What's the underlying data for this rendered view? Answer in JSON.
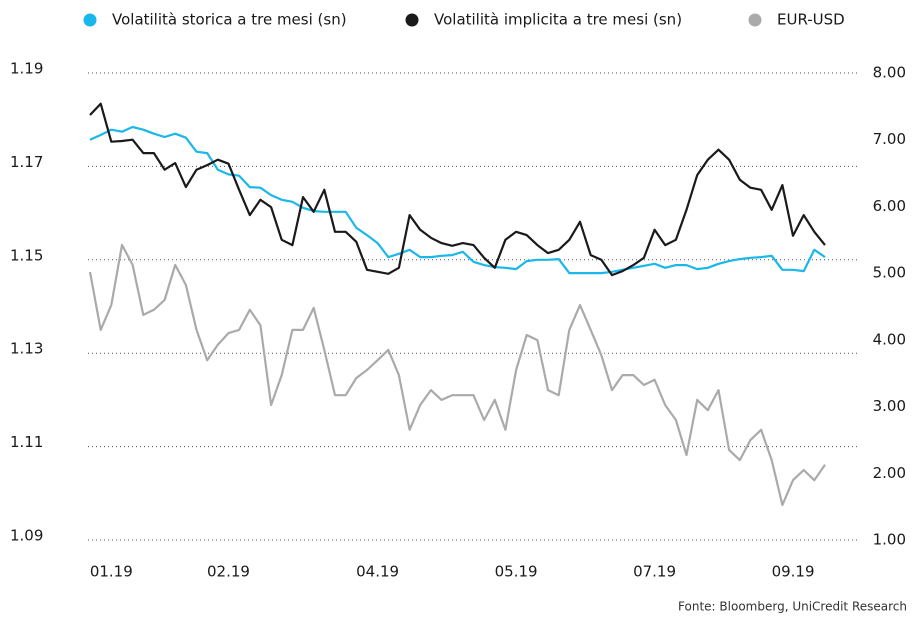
{
  "chart_data": {
    "type": "line",
    "source": "Fonte: Bloomberg, UniCredit Research",
    "categories": [
      null,
      null,
      "01.19",
      null,
      null,
      null,
      null,
      null,
      null,
      null,
      null,
      null,
      null,
      "02.19",
      null,
      null,
      null,
      null,
      null,
      null,
      null,
      null,
      null,
      null,
      null,
      null,
      null,
      "04.19",
      null,
      null,
      null,
      null,
      null,
      null,
      null,
      null,
      null,
      null,
      null,
      null,
      "05.19",
      null,
      null,
      null,
      null,
      null,
      null,
      null,
      null,
      null,
      null,
      null,
      null,
      "07.19",
      null,
      null,
      null,
      null,
      null,
      null,
      null,
      null,
      null,
      null,
      null,
      null,
      "09.19",
      null,
      null,
      null
    ],
    "ylim": [
      1.09,
      1.19
    ],
    "yticks": [
      1.09,
      1.11,
      1.13,
      1.15,
      1.17,
      1.19
    ],
    "y2lim": [
      1.0,
      8.0
    ],
    "y2ticks": [
      {
        "value": 1,
        "label": "1.00"
      },
      {
        "value": 2,
        "label": "2.00"
      },
      {
        "value": 3,
        "label": "3.00"
      },
      {
        "value": 4,
        "label": "4.00"
      },
      {
        "value": 5,
        "label": "5.00"
      },
      {
        "value": 6,
        "label": "6.00"
      },
      {
        "value": 7,
        "label": "7.00"
      },
      {
        "value": 8,
        "label": "8.00"
      }
    ],
    "grid": true,
    "legend": "top",
    "series": [
      {
        "name": "Volatilità storica a tre mesi (sn)",
        "color": "#1ab7ea",
        "axis": "y2",
        "values": [
          7.0,
          7.07,
          7.15,
          7.12,
          7.19,
          7.15,
          7.09,
          7.04,
          7.09,
          7.03,
          6.82,
          6.8,
          6.55,
          6.48,
          6.46,
          6.29,
          6.28,
          6.17,
          6.1,
          6.07,
          5.98,
          5.93,
          5.92,
          5.92,
          5.92,
          5.68,
          5.57,
          5.45,
          5.24,
          5.29,
          5.35,
          5.24,
          5.24,
          5.26,
          5.27,
          5.32,
          5.17,
          5.12,
          5.09,
          5.08,
          5.06,
          5.18,
          5.2,
          5.2,
          5.21,
          5.0,
          5.0,
          5.0,
          5.0,
          5.02,
          5.05,
          5.08,
          5.11,
          5.14,
          5.08,
          5.12,
          5.12,
          5.06,
          5.08,
          5.14,
          5.18,
          5.21,
          5.23,
          5.24,
          5.26,
          5.05,
          5.05,
          5.03,
          5.35,
          5.24
        ]
      },
      {
        "name": "Volatilità implicita a tre mesi (sn)",
        "color": "#1a1a1a",
        "axis": "y2",
        "values": [
          7.37,
          7.54,
          6.97,
          6.98,
          7.0,
          6.8,
          6.8,
          6.55,
          6.65,
          6.29,
          6.55,
          6.62,
          6.7,
          6.64,
          6.25,
          5.87,
          6.1,
          5.99,
          5.5,
          5.42,
          6.14,
          5.92,
          6.25,
          5.62,
          5.62,
          5.47,
          5.05,
          5.02,
          4.99,
          5.08,
          5.87,
          5.65,
          5.53,
          5.45,
          5.41,
          5.45,
          5.42,
          5.23,
          5.08,
          5.5,
          5.62,
          5.57,
          5.42,
          5.3,
          5.35,
          5.5,
          5.77,
          5.27,
          5.2,
          4.97,
          5.03,
          5.12,
          5.23,
          5.65,
          5.42,
          5.5,
          5.95,
          6.47,
          6.7,
          6.85,
          6.7,
          6.4,
          6.28,
          6.25,
          5.95,
          6.32,
          5.56,
          5.87,
          5.62,
          5.42
        ]
      },
      {
        "name": "EUR-USD",
        "color": "#aaaaaa",
        "values": [
          1.1474,
          1.135,
          1.1403,
          1.1532,
          1.1489,
          1.1382,
          1.1393,
          1.1414,
          1.1489,
          1.1446,
          1.135,
          1.1285,
          1.1318,
          1.1343,
          1.135,
          1.1393,
          1.136,
          1.1189,
          1.1253,
          1.135,
          1.135,
          1.1397,
          1.1307,
          1.121,
          1.121,
          1.1247,
          1.1264,
          1.1285,
          1.1307,
          1.1253,
          1.1136,
          1.1189,
          1.1221,
          1.12,
          1.121,
          1.121,
          1.121,
          1.1157,
          1.12,
          1.1136,
          1.1264,
          1.1339,
          1.1328,
          1.1221,
          1.121,
          1.135,
          1.1403,
          1.135,
          1.1296,
          1.1221,
          1.1253,
          1.1253,
          1.1232,
          1.1243,
          1.1189,
          1.1157,
          1.1082,
          1.12,
          1.1178,
          1.1221,
          1.1093,
          1.1071,
          1.1114,
          1.1136,
          1.1071,
          1.0975,
          1.1028,
          1.105,
          1.1028,
          1.1061
        ]
      }
    ]
  }
}
